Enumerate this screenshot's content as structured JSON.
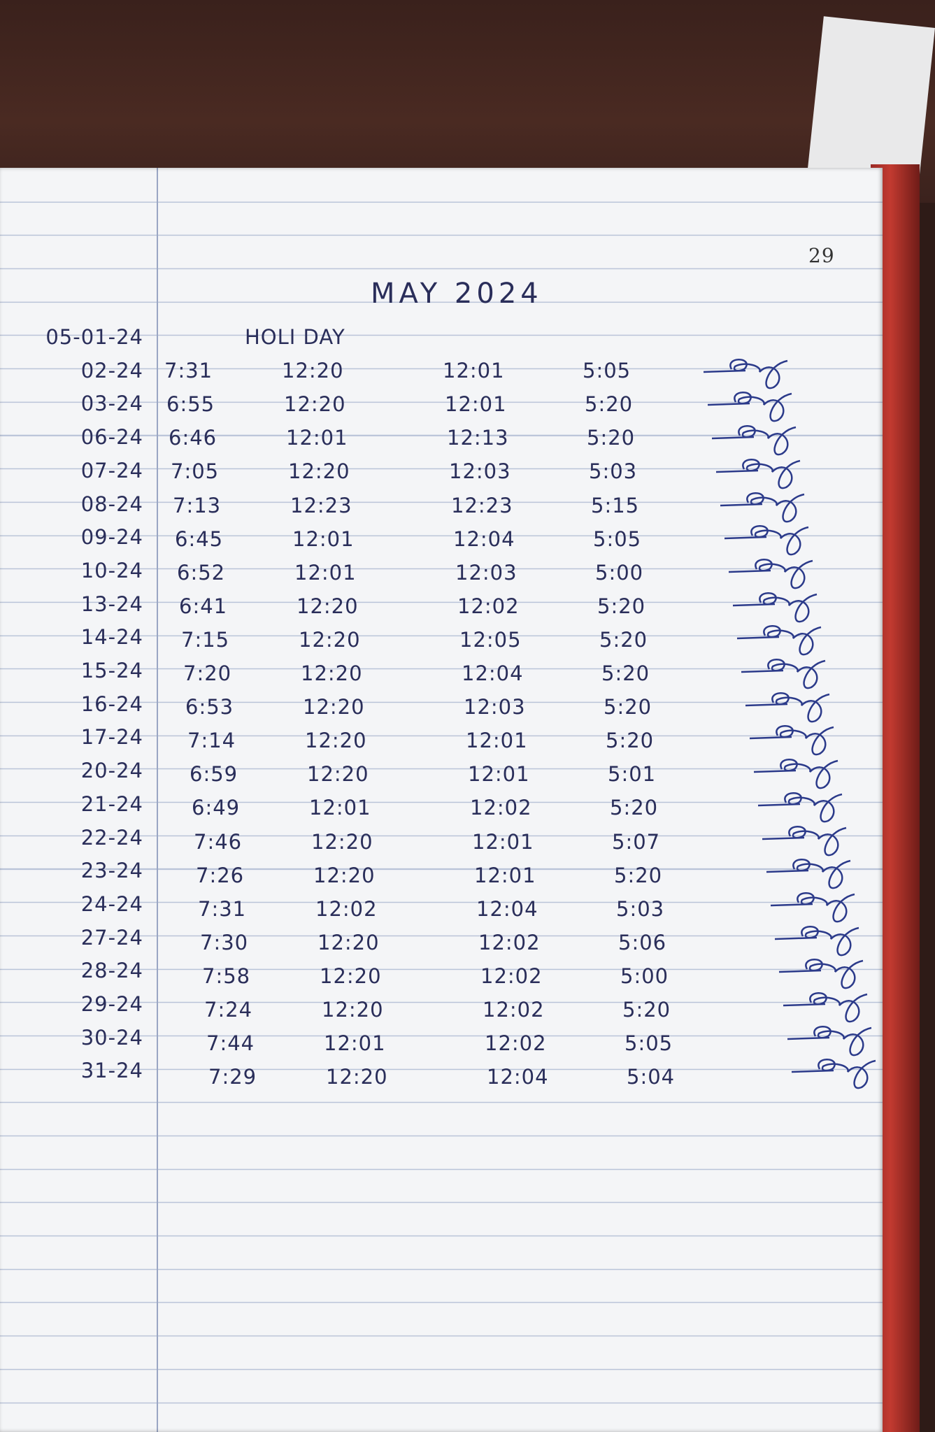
{
  "page_number": "29",
  "title": "MAY 2024",
  "rows": [
    [
      "05-01-24",
      "HOLI DAY"
    ],
    [
      "02-24",
      "7:31",
      "12:20",
      "12:01",
      "5:05"
    ],
    [
      "03-24",
      "6:55",
      "12:20",
      "12:01",
      "5:20"
    ],
    [
      "06-24",
      "6:46",
      "12:01",
      "12:13",
      "5:20"
    ],
    [
      "07-24",
      "7:05",
      "12:20",
      "12:03",
      "5:03"
    ],
    [
      "08-24",
      "7:13",
      "12:23",
      "12:23",
      "5:15"
    ],
    [
      "09-24",
      "6:45",
      "12:01",
      "12:04",
      "5:05"
    ],
    [
      "10-24",
      "6:52",
      "12:01",
      "12:03",
      "5:00"
    ],
    [
      "13-24",
      "6:41",
      "12:20",
      "12:02",
      "5:20"
    ],
    [
      "14-24",
      "7:15",
      "12:20",
      "12:05",
      "5:20"
    ],
    [
      "15-24",
      "7:20",
      "12:20",
      "12:04",
      "5:20"
    ],
    [
      "16-24",
      "6:53",
      "12:20",
      "12:03",
      "5:20"
    ],
    [
      "17-24",
      "7:14",
      "12:20",
      "12:01",
      "5:20"
    ],
    [
      "20-24",
      "6:59",
      "12:20",
      "12:01",
      "5:01"
    ],
    [
      "21-24",
      "6:49",
      "12:01",
      "12:02",
      "5:20"
    ],
    [
      "22-24",
      "7:46",
      "12:20",
      "12:01",
      "5:07"
    ],
    [
      "23-24",
      "7:26",
      "12:20",
      "12:01",
      "5:20"
    ],
    [
      "24-24",
      "7:31",
      "12:02",
      "12:04",
      "5:03"
    ],
    [
      "27-24",
      "7:30",
      "12:20",
      "12:02",
      "5:06"
    ],
    [
      "28-24",
      "7:58",
      "12:20",
      "12:02",
      "5:00"
    ],
    [
      "29-24",
      "7:24",
      "12:20",
      "12:02",
      "5:20"
    ],
    [
      "30-24",
      "7:44",
      "12:01",
      "12:02",
      "5:05"
    ],
    [
      "31-24",
      "7:29",
      "12:20",
      "12:04",
      "5:04"
    ]
  ]
}
